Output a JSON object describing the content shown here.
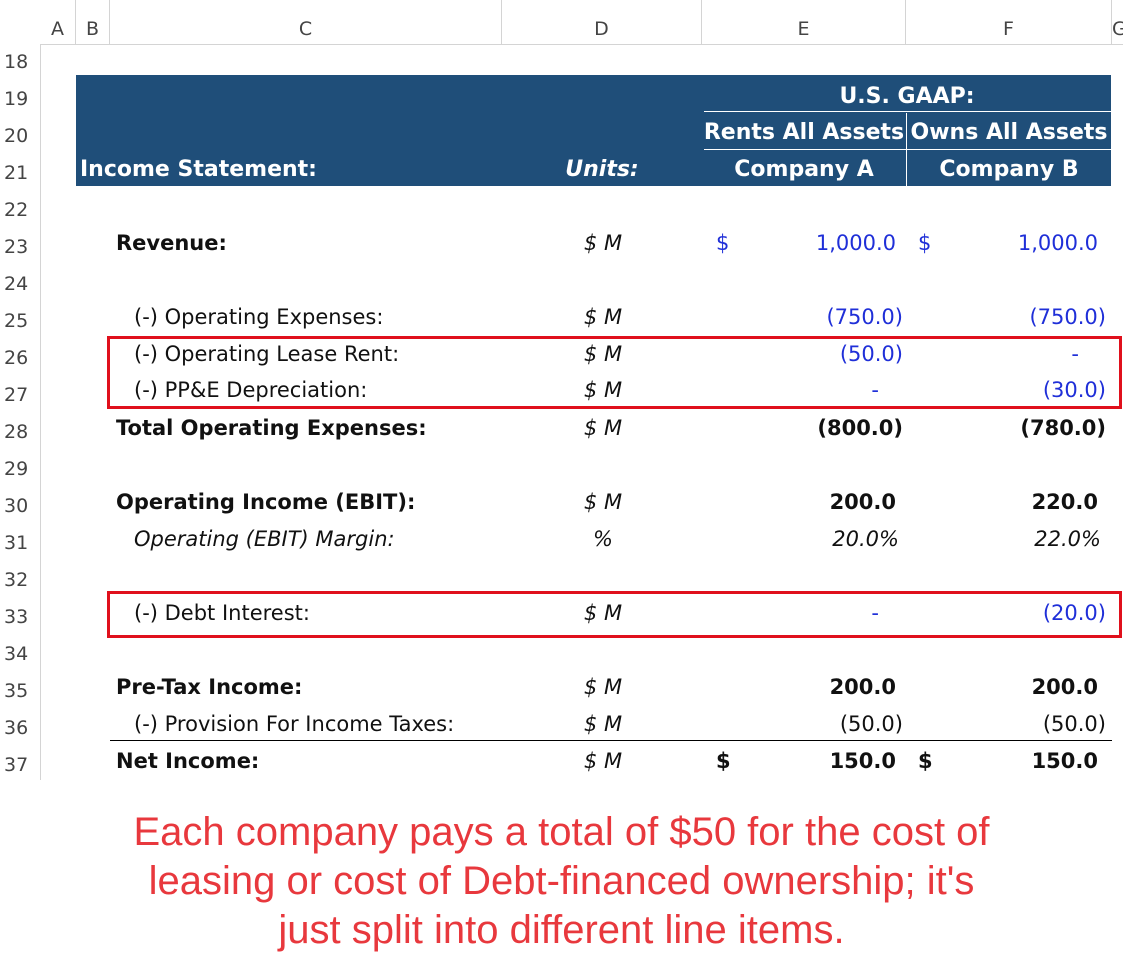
{
  "columns": [
    "A",
    "B",
    "C",
    "D",
    "E",
    "F",
    "G"
  ],
  "rows": [
    "18",
    "19",
    "20",
    "21",
    "22",
    "23",
    "24",
    "25",
    "26",
    "27",
    "28",
    "29",
    "30",
    "31",
    "32",
    "33",
    "34",
    "35",
    "36",
    "37"
  ],
  "header": {
    "gaap": "U.S. GAAP:",
    "rents": "Rents All Assets",
    "owns": "Owns All Assets",
    "income_statement": "Income Statement:",
    "units": "Units:",
    "company_a": "Company A",
    "company_b": "Company B"
  },
  "lines": {
    "revenue": {
      "label": "Revenue:",
      "unit": "$ M",
      "cur_a": "$",
      "a": "1,000.0",
      "cur_b": "$",
      "b": "1,000.0"
    },
    "opex": {
      "label": "(-) Operating Expenses:",
      "unit": "$ M",
      "a": "(750.0)",
      "b": "(750.0)"
    },
    "lease": {
      "label": "(-) Operating Lease Rent:",
      "unit": "$ M",
      "a": "(50.0)",
      "b": "-"
    },
    "depr": {
      "label": "(-) PP&E Depreciation:",
      "unit": "$ M",
      "a": "-",
      "b": "(30.0)"
    },
    "total_opex": {
      "label": "Total Operating Expenses:",
      "unit": "$ M",
      "a": "(800.0)",
      "b": "(780.0)"
    },
    "ebit": {
      "label": "Operating Income (EBIT):",
      "unit": "$ M",
      "a": "200.0",
      "b": "220.0"
    },
    "margin": {
      "label": "Operating (EBIT) Margin:",
      "unit": "%",
      "a": "20.0%",
      "b": "22.0%"
    },
    "interest": {
      "label": "(-) Debt Interest:",
      "unit": "$ M",
      "a": "-",
      "b": "(20.0)"
    },
    "pretax": {
      "label": "Pre-Tax Income:",
      "unit": "$ M",
      "a": "200.0",
      "b": "200.0"
    },
    "taxes": {
      "label": "(-) Provision For Income Taxes:",
      "unit": "$ M",
      "a": "(50.0)",
      "b": "(50.0)"
    },
    "net": {
      "label": "Net Income:",
      "unit": "$ M",
      "cur_a": "$",
      "a": "150.0",
      "cur_b": "$",
      "b": "150.0"
    }
  },
  "annotation": {
    "line1": "Each company pays a total of $50 for the cost of",
    "line2": "leasing or cost of Debt-financed ownership; it's",
    "line3": "just split into different line items."
  },
  "colors": {
    "header_fill": "#1f4e79",
    "input_blue": "#1f2fd8",
    "highlight_red": "#e0101c",
    "note_red": "#e8383d"
  }
}
